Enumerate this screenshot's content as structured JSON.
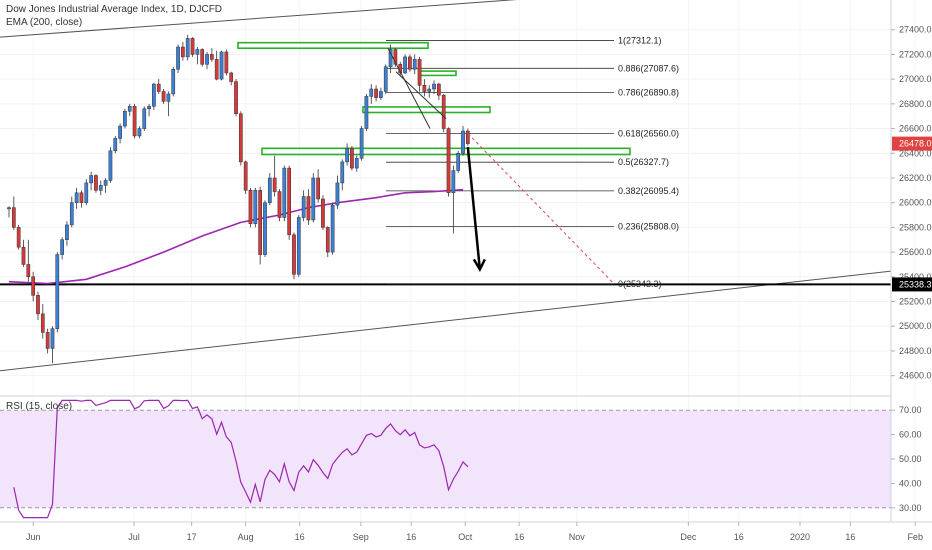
{
  "chart_data": [
    {
      "type": "candlestick",
      "title": "Dow Jones Industrial Average Index, 1D, DJCFD",
      "subtitle": "EMA (200, close)",
      "ylim": [
        24500,
        27600
      ],
      "y_ticks": [
        27400,
        27200,
        27000,
        26800,
        26600,
        26400,
        26200,
        26000,
        25800,
        25600,
        25400,
        25200,
        25000,
        24800,
        24600
      ],
      "y_tick_labels": [
        "27400.0",
        "27200.0",
        "27000.0",
        "26800.0",
        "26600.0",
        "26400.0",
        "26200.0",
        "26000.0",
        "25800.0",
        "25600.0",
        "25400.0",
        "25200.0",
        "25000.0",
        "24800.0",
        "24600.0"
      ],
      "x_tick_labels": [
        "Jun",
        "Jul",
        "17",
        "Aug",
        "16",
        "Sep",
        "16",
        "Oct",
        "16",
        "Nov",
        "Dec",
        "16",
        "2020",
        "16",
        "Feb"
      ],
      "x_tick_dates": [
        "2019-06-03",
        "2019-07-01",
        "2019-07-17",
        "2019-08-01",
        "2019-08-16",
        "2019-09-02",
        "2019-09-16",
        "2019-10-01",
        "2019-10-16",
        "2019-11-01",
        "2019-12-02",
        "2019-12-16",
        "2020-01-02",
        "2020-01-16",
        "2020-02-03"
      ],
      "price_badges": [
        {
          "value": 26478.0,
          "label": "26478.0",
          "color": "#e0433f"
        },
        {
          "value": 25338.3,
          "label": "25338.3",
          "color": "#000000"
        }
      ],
      "fib_levels": [
        {
          "ratio": 1,
          "value": 27312.1,
          "label": "1(27312.1)"
        },
        {
          "ratio": 0.886,
          "value": 27087.6,
          "label": "0.886(27087.6)"
        },
        {
          "ratio": 0.786,
          "value": 26890.8,
          "label": "0.786(26890.8)"
        },
        {
          "ratio": 0.618,
          "value": 26560.0,
          "label": "0.618(26560.0)"
        },
        {
          "ratio": 0.5,
          "value": 26327.7,
          "label": "0.5(26327.7)"
        },
        {
          "ratio": 0.382,
          "value": 26095.4,
          "label": "0.382(26095.4)"
        },
        {
          "ratio": 0.236,
          "value": 25808.0,
          "label": "0.236(25808.0)"
        },
        {
          "ratio": 0,
          "value": 25343.3,
          "label": "0(25343.3)"
        }
      ],
      "support_line": 25338.3,
      "candle_colors": {
        "up": "#3b7fd6",
        "down": "#d6393a"
      },
      "ema_color": "#9c27b0",
      "zone_color": "#27b227",
      "candles": [
        [
          25950,
          25970,
          25880,
          25960
        ],
        [
          25960,
          26050,
          25780,
          25800
        ],
        [
          25800,
          25820,
          25620,
          25640
        ],
        [
          25640,
          25700,
          25480,
          25500
        ],
        [
          25500,
          25700,
          25360,
          25400
        ],
        [
          25400,
          25440,
          25200,
          25250
        ],
        [
          25250,
          25280,
          25050,
          25100
        ],
        [
          25100,
          25180,
          24900,
          24950
        ],
        [
          24950,
          24980,
          24780,
          24820
        ],
        [
          24820,
          25000,
          24700,
          24980
        ],
        [
          24980,
          25600,
          24950,
          25580
        ],
        [
          25580,
          25720,
          25540,
          25700
        ],
        [
          25700,
          25850,
          25650,
          25820
        ],
        [
          25820,
          26050,
          25800,
          26000
        ],
        [
          26000,
          26120,
          25950,
          26080
        ],
        [
          26080,
          26100,
          25960,
          26000
        ],
        [
          26000,
          26190,
          25980,
          26160
        ],
        [
          26160,
          26250,
          26100,
          26220
        ],
        [
          26220,
          26230,
          26080,
          26100
        ],
        [
          26100,
          26180,
          26060,
          26140
        ],
        [
          26140,
          26200,
          26080,
          26180
        ],
        [
          26180,
          26450,
          26160,
          26420
        ],
        [
          26420,
          26540,
          26400,
          26520
        ],
        [
          26520,
          26640,
          26480,
          26620
        ],
        [
          26620,
          26760,
          26600,
          26740
        ],
        [
          26740,
          26800,
          26700,
          26780
        ],
        [
          26780,
          26800,
          26520,
          26540
        ],
        [
          26540,
          26620,
          26520,
          26600
        ],
        [
          26600,
          26780,
          26580,
          26760
        ],
        [
          26760,
          26800,
          26700,
          26780
        ],
        [
          26780,
          26970,
          26750,
          26960
        ],
        [
          26960,
          27000,
          26880,
          26900
        ],
        [
          26900,
          26920,
          26800,
          26820
        ],
        [
          26820,
          26900,
          26700,
          26880
        ],
        [
          26880,
          27100,
          26860,
          27080
        ],
        [
          27080,
          27280,
          27050,
          27260
        ],
        [
          27260,
          27300,
          27150,
          27180
        ],
        [
          27180,
          27360,
          27150,
          27330
        ],
        [
          27330,
          27340,
          27180,
          27200
        ],
        [
          27200,
          27260,
          27120,
          27240
        ],
        [
          27240,
          27250,
          27100,
          27120
        ],
        [
          27120,
          27220,
          27080,
          27200
        ],
        [
          27200,
          27250,
          27140,
          27160
        ],
        [
          27160,
          27230,
          26990,
          27000
        ],
        [
          27000,
          27230,
          26990,
          27220
        ],
        [
          27220,
          27240,
          27030,
          27050
        ],
        [
          27050,
          27060,
          26950,
          26980
        ],
        [
          26980,
          27000,
          26700,
          26720
        ],
        [
          26720,
          26740,
          26300,
          26330
        ],
        [
          26330,
          26340,
          26070,
          26100
        ],
        [
          26100,
          26120,
          25800,
          25830
        ],
        [
          25830,
          26120,
          25800,
          26100
        ],
        [
          26100,
          26130,
          25500,
          25580
        ],
        [
          25580,
          26020,
          25560,
          26000
        ],
        [
          26000,
          26240,
          25980,
          26200
        ],
        [
          26200,
          26380,
          26050,
          26090
        ],
        [
          26090,
          26110,
          25850,
          25880
        ],
        [
          25880,
          26300,
          25850,
          26280
        ],
        [
          26280,
          26300,
          25700,
          25740
        ],
        [
          25740,
          25760,
          25380,
          25420
        ],
        [
          25420,
          25900,
          25400,
          25880
        ],
        [
          25880,
          26100,
          25850,
          26050
        ],
        [
          26050,
          26110,
          25820,
          25860
        ],
        [
          25860,
          26240,
          25840,
          26200
        ],
        [
          26200,
          26270,
          26000,
          26030
        ],
        [
          26030,
          26060,
          25780,
          25800
        ],
        [
          25800,
          25810,
          25560,
          25600
        ],
        [
          25600,
          26000,
          25580,
          25980
        ],
        [
          25980,
          26220,
          25950,
          26160
        ],
        [
          26160,
          26350,
          26100,
          26330
        ],
        [
          26330,
          26480,
          26300,
          26440
        ],
        [
          26440,
          26460,
          26260,
          26280
        ],
        [
          26280,
          26380,
          26250,
          26360
        ],
        [
          26360,
          26620,
          26340,
          26600
        ],
        [
          26600,
          26880,
          26580,
          26860
        ],
        [
          26860,
          26960,
          26800,
          26920
        ],
        [
          26920,
          26950,
          26820,
          26850
        ],
        [
          26850,
          26930,
          26830,
          26900
        ],
        [
          26900,
          27120,
          26880,
          27100
        ],
        [
          27100,
          27280,
          27050,
          27240
        ],
        [
          27240,
          27250,
          27100,
          27120
        ],
        [
          27120,
          27140,
          27020,
          27050
        ],
        [
          27050,
          27200,
          27040,
          27180
        ],
        [
          27180,
          27200,
          27060,
          27080
        ],
        [
          27080,
          27200,
          27040,
          27160
        ],
        [
          27160,
          27180,
          26900,
          26950
        ],
        [
          26950,
          27000,
          26860,
          26900
        ],
        [
          26900,
          26950,
          26850,
          26920
        ],
        [
          26920,
          26990,
          26880,
          26960
        ],
        [
          26960,
          26970,
          26830,
          26870
        ],
        [
          26870,
          26880,
          26570,
          26600
        ],
        [
          26600,
          26610,
          26050,
          26080
        ],
        [
          26080,
          26300,
          25750,
          26260
        ],
        [
          26260,
          26420,
          26240,
          26400
        ],
        [
          26400,
          26620,
          26380,
          26580
        ],
        [
          26580,
          26600,
          26460,
          26478
        ]
      ],
      "ema": [
        [
          0,
          25360
        ],
        [
          8,
          25345
        ],
        [
          16,
          25380
        ],
        [
          24,
          25480
        ],
        [
          32,
          25600
        ],
        [
          40,
          25730
        ],
        [
          48,
          25840
        ],
        [
          56,
          25900
        ],
        [
          62,
          25960
        ],
        [
          68,
          26000
        ],
        [
          76,
          26040
        ],
        [
          82,
          26080
        ],
        [
          88,
          26090
        ],
        [
          94,
          26105
        ]
      ],
      "rsi": {
        "title": "RSI (15, close)",
        "ylim": [
          25,
          75
        ],
        "y_ticks": [
          70,
          60,
          50,
          40,
          30
        ],
        "y_tick_labels": [
          "70.00",
          "60.00",
          "50.00",
          "40.00",
          "30.00"
        ],
        "upper": 70,
        "lower": 30,
        "color": "#9c27b0",
        "band_color": "#f1e4fb"
      }
    }
  ]
}
